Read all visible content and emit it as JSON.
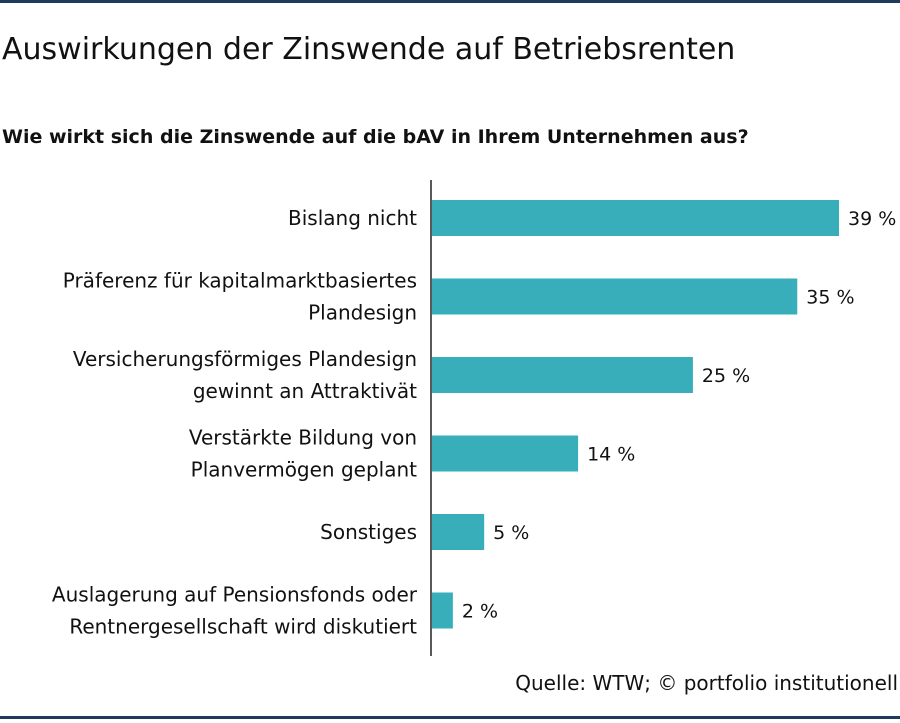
{
  "header": {
    "title": "Auswirkungen der Zinswende auf Betriebsrenten",
    "subtitle": "Wie wirkt sich die Zinswende auf die bAV in Ihrem Unternehmen aus?"
  },
  "footer": {
    "source": "Quelle: WTW; © portfolio institutionell"
  },
  "colors": {
    "bar": "#37aeba",
    "rule": "#1f3a5c",
    "axis": "#222222"
  },
  "chart_data": {
    "type": "bar",
    "orientation": "horizontal",
    "categories": [
      [
        "Bislang nicht"
      ],
      [
        "Präferenz für kapitalmarktbasiertes",
        "Plandesign"
      ],
      [
        "Versicherungsförmiges Plandesign",
        "gewinnt an Attraktivät"
      ],
      [
        "Verstärkte Bildung von",
        "Planvermögen geplant"
      ],
      [
        "Sonstiges"
      ],
      [
        "Auslagerung auf Pensionsfonds oder",
        "Rentnergesellschaft wird diskutiert"
      ]
    ],
    "values": [
      39,
      35,
      25,
      14,
      5,
      2
    ],
    "value_labels": [
      "39 %",
      "35 %",
      "25 %",
      "14 %",
      "5 %",
      "2 %"
    ],
    "xlim": [
      0,
      39
    ],
    "grid": false,
    "legend": "none"
  }
}
